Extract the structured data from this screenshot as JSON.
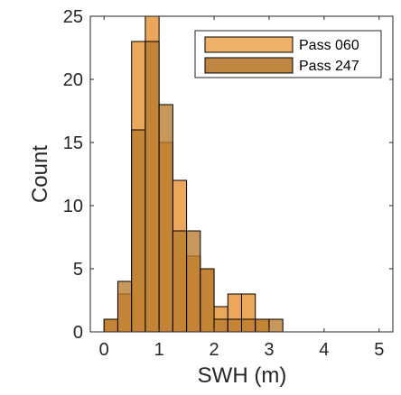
{
  "chart_data": {
    "type": "bar",
    "title": "",
    "xlabel": "SWH (m)",
    "ylabel": "Count",
    "xlim": [
      -0.25,
      5.25
    ],
    "ylim": [
      0,
      25
    ],
    "x_ticks": [
      "0",
      "1",
      "2",
      "3",
      "4",
      "5"
    ],
    "y_ticks": [
      "0",
      "5",
      "10",
      "15",
      "20",
      "25"
    ],
    "bin_width": 0.25,
    "bin_edges": [
      0,
      0.25,
      0.5,
      0.75,
      1.0,
      1.25,
      1.5,
      1.75,
      2.0,
      2.25,
      2.5,
      2.75,
      3.0,
      3.25
    ],
    "legend_position": "top-right",
    "grid": false,
    "series": [
      {
        "name": "Pass 060",
        "color": "#EBA85A",
        "values": [
          1,
          3,
          23,
          25,
          15,
          12,
          6,
          5,
          2,
          3,
          3,
          1,
          0
        ]
      },
      {
        "name": "Pass 247",
        "color": "#B87A2C",
        "values": [
          1,
          4,
          16,
          23,
          18,
          8,
          8,
          5,
          1,
          1,
          1,
          1,
          1
        ]
      }
    ]
  }
}
